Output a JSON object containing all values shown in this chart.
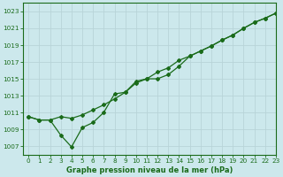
{
  "x": [
    0,
    1,
    2,
    3,
    4,
    5,
    6,
    7,
    8,
    9,
    10,
    11,
    12,
    13,
    14,
    15,
    16,
    17,
    18,
    19,
    20,
    21,
    22,
    23
  ],
  "line1": [
    1010.5,
    1010.1,
    1010.1,
    1010.5,
    1010.3,
    1010.7,
    1011.3,
    1011.9,
    1012.6,
    1013.4,
    1014.5,
    1015.0,
    1015.8,
    1016.3,
    1017.2,
    1017.7,
    1018.3,
    1018.9,
    1019.6,
    1020.2,
    1021.0,
    1021.7,
    1022.2,
    1022.8
  ],
  "line2": [
    1010.5,
    1010.1,
    1010.1,
    1008.3,
    1006.9,
    1009.2,
    1009.8,
    1011.0,
    1013.2,
    1013.4,
    1014.7,
    1015.0,
    1015.0,
    1015.5,
    1016.5,
    1017.7,
    1018.3,
    1018.9,
    1019.6,
    1020.2,
    1021.0,
    1021.7,
    1022.2,
    1022.8
  ],
  "bg_color": "#cce8ec",
  "grid_color": "#b8d4d8",
  "line_color": "#1a6b1a",
  "xlabel": "Graphe pression niveau de la mer (hPa)",
  "ylim": [
    1006,
    1024
  ],
  "xlim": [
    -0.5,
    23
  ],
  "yticks": [
    1007,
    1009,
    1011,
    1013,
    1015,
    1017,
    1019,
    1021,
    1023
  ],
  "xticks": [
    0,
    1,
    2,
    3,
    4,
    5,
    6,
    7,
    8,
    9,
    10,
    11,
    12,
    13,
    14,
    15,
    16,
    17,
    18,
    19,
    20,
    21,
    22,
    23
  ]
}
